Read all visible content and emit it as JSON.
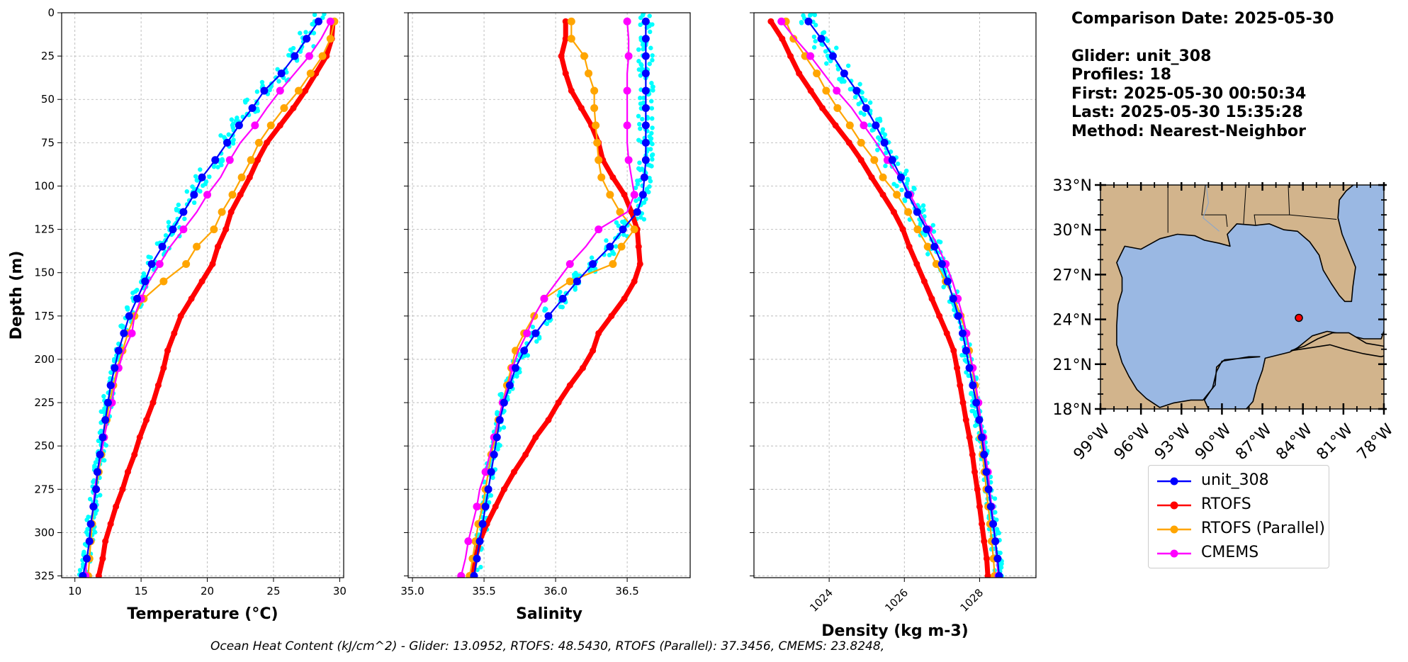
{
  "info": {
    "comparison_date": "Comparison Date: 2025-05-30",
    "glider": "Glider: unit_308",
    "profiles": "Profiles: 18",
    "first": "First: 2025-05-30 00:50:34",
    "last": "Last: 2025-05-30 15:35:28",
    "method": "Method: Nearest-Neighbor"
  },
  "ohc_text": "Ocean Heat Content (kJ/cm^2) - Glider: 13.0952,  RTOFS: 48.5430,  RTOFS (Parallel): 37.3456,  CMEMS: 23.8248,",
  "legend": [
    {
      "label": "unit_308",
      "color": "#0000ff"
    },
    {
      "label": "RTOFS",
      "color": "#ff0000"
    },
    {
      "label": "RTOFS (Parallel)",
      "color": "#ffa500"
    },
    {
      "label": "CMEMS",
      "color": "#ff00ff"
    }
  ],
  "colors": {
    "glider_raw": "#00ffff",
    "glider": "#0000ff",
    "rtofs": "#ff0000",
    "rtofs_parallel": "#ffa500",
    "cmems": "#ff00ff",
    "land": "#d2b48c",
    "ocean": "#9ab8e3"
  },
  "map": {
    "lat_ticks": [
      "33°N",
      "30°N",
      "27°N",
      "24°N",
      "21°N",
      "18°N"
    ],
    "lon_ticks": [
      "99°W",
      "96°W",
      "93°W",
      "90°W",
      "87°W",
      "84°W",
      "81°W",
      "78°W"
    ],
    "glider_position": {
      "lon": -84.3,
      "lat": 24.1
    }
  },
  "chart_data": [
    {
      "type": "line",
      "xlabel": "Temperature (°C)",
      "ylabel": "Depth (m)",
      "xlim": [
        9,
        30.3
      ],
      "ylim": [
        326,
        0
      ],
      "xticks": [
        10,
        15,
        20,
        25,
        30
      ],
      "yticks": [
        0,
        25,
        50,
        75,
        100,
        125,
        150,
        175,
        200,
        225,
        250,
        275,
        300,
        325
      ],
      "grid": true,
      "depth": [
        5,
        15,
        25,
        35,
        45,
        55,
        65,
        75,
        85,
        95,
        105,
        115,
        125,
        135,
        145,
        155,
        165,
        175,
        185,
        195,
        205,
        215,
        225,
        235,
        245,
        255,
        265,
        275,
        285,
        295,
        305,
        315,
        325
      ],
      "series": [
        {
          "name": "unit_308",
          "x": [
            28.4,
            27.5,
            26.6,
            25.6,
            24.3,
            23.4,
            22.4,
            21.5,
            20.6,
            19.6,
            19.0,
            18.2,
            17.4,
            16.6,
            15.8,
            15.3,
            14.7,
            14.1,
            13.7,
            13.3,
            13.0,
            12.7,
            12.5,
            12.3,
            12.1,
            11.9,
            11.7,
            11.6,
            11.4,
            11.2,
            11.1,
            10.9,
            10.6
          ]
        },
        {
          "name": "RTOFS",
          "x": [
            29.5,
            29.4,
            29.0,
            28.2,
            27.4,
            26.5,
            25.5,
            24.5,
            23.8,
            23.2,
            22.5,
            21.8,
            21.4,
            20.8,
            20.4,
            19.6,
            18.8,
            18.0,
            17.5,
            17.0,
            16.7,
            16.3,
            15.9,
            15.4,
            14.9,
            14.5,
            14.0,
            13.6,
            13.1,
            12.7,
            12.3,
            12.1,
            11.8
          ]
        },
        {
          "name": "RTOFS (Parallel)",
          "x": [
            29.6,
            29.3,
            28.7,
            27.8,
            26.9,
            25.8,
            24.8,
            23.9,
            23.3,
            22.6,
            21.9,
            21.1,
            20.5,
            19.2,
            18.4,
            16.7,
            15.2,
            14.5,
            14.0,
            13.6,
            13.2,
            12.9,
            12.6,
            12.4,
            12.2,
            12.0,
            11.8,
            11.6,
            11.4,
            11.3,
            11.2,
            11.1,
            11.0
          ]
        },
        {
          "name": "CMEMS",
          "x": [
            29.3,
            28.6,
            27.7,
            26.6,
            25.5,
            24.5,
            23.6,
            22.5,
            21.7,
            21.0,
            20.0,
            19.2,
            18.2,
            17.2,
            16.4,
            15.6,
            15.0,
            14.5,
            14.3,
            13.7,
            13.3,
            13.0,
            12.8,
            12.5,
            12.2,
            12.0,
            11.7,
            11.5,
            11.4,
            11.2,
            11.1,
            10.9,
            10.8
          ]
        }
      ]
    },
    {
      "type": "line",
      "xlabel": "Salinity",
      "ylabel": "",
      "xlim": [
        34.97,
        36.94
      ],
      "ylim": [
        326,
        0
      ],
      "xticks": [
        35.0,
        35.5,
        36.0,
        36.5
      ],
      "grid": true,
      "depth": [
        5,
        15,
        25,
        35,
        45,
        55,
        65,
        75,
        85,
        95,
        105,
        115,
        125,
        135,
        145,
        155,
        165,
        175,
        185,
        195,
        205,
        215,
        225,
        235,
        245,
        255,
        265,
        275,
        285,
        295,
        305,
        315,
        325
      ],
      "series": [
        {
          "name": "unit_308",
          "x": [
            36.63,
            36.63,
            36.63,
            36.63,
            36.63,
            36.63,
            36.63,
            36.63,
            36.63,
            36.62,
            36.61,
            36.57,
            36.47,
            36.38,
            36.26,
            36.15,
            36.05,
            35.95,
            35.86,
            35.78,
            35.72,
            35.68,
            35.64,
            35.61,
            35.59,
            35.57,
            35.55,
            35.53,
            35.51,
            35.49,
            35.47,
            35.45,
            35.43
          ]
        },
        {
          "name": "RTOFS",
          "x": [
            36.07,
            36.07,
            36.04,
            36.07,
            36.11,
            36.18,
            36.25,
            36.3,
            36.33,
            36.4,
            36.48,
            36.53,
            36.57,
            36.58,
            36.59,
            36.55,
            36.48,
            36.39,
            36.3,
            36.26,
            36.19,
            36.1,
            36.02,
            35.95,
            35.86,
            35.79,
            35.71,
            35.64,
            35.58,
            35.52,
            35.47,
            35.44,
            35.42
          ]
        },
        {
          "name": "RTOFS (Parallel)",
          "x": [
            36.11,
            36.11,
            36.2,
            36.23,
            36.27,
            36.27,
            36.28,
            36.29,
            36.3,
            36.32,
            36.38,
            36.45,
            36.55,
            36.46,
            36.4,
            36.1,
            35.92,
            35.85,
            35.78,
            35.72,
            35.69,
            35.66,
            35.63,
            35.6,
            35.58,
            35.55,
            35.53,
            35.51,
            35.49,
            35.46,
            35.44,
            35.42,
            35.4
          ]
        },
        {
          "name": "CMEMS",
          "x": [
            36.5,
            36.51,
            36.51,
            36.5,
            36.5,
            36.5,
            36.5,
            36.5,
            36.51,
            36.53,
            36.55,
            36.5,
            36.3,
            36.21,
            36.1,
            36.01,
            35.92,
            35.85,
            35.8,
            35.74,
            35.7,
            35.67,
            35.63,
            35.6,
            35.57,
            35.54,
            35.51,
            35.47,
            35.45,
            35.42,
            35.39,
            35.37,
            35.34
          ]
        }
      ]
    },
    {
      "type": "line",
      "xlabel": "Density (kg m-3)",
      "ylabel": "",
      "xlim": [
        1022.0,
        1029.5
      ],
      "ylim": [
        326,
        0
      ],
      "xticks": [
        1024,
        1026,
        1028
      ],
      "grid": true,
      "depth": [
        5,
        15,
        25,
        35,
        45,
        55,
        65,
        75,
        85,
        95,
        105,
        115,
        125,
        135,
        145,
        155,
        165,
        175,
        185,
        195,
        205,
        215,
        225,
        235,
        245,
        255,
        265,
        275,
        285,
        295,
        305,
        315,
        325
      ],
      "series": [
        {
          "name": "unit_308",
          "x": [
            1023.45,
            1023.79,
            1024.1,
            1024.4,
            1024.73,
            1024.98,
            1025.24,
            1025.47,
            1025.68,
            1025.91,
            1026.1,
            1026.34,
            1026.59,
            1026.8,
            1027.0,
            1027.15,
            1027.3,
            1027.43,
            1027.55,
            1027.64,
            1027.73,
            1027.82,
            1027.91,
            1027.99,
            1028.06,
            1028.12,
            1028.18,
            1028.24,
            1028.3,
            1028.36,
            1028.42,
            1028.48,
            1028.52
          ]
        },
        {
          "name": "RTOFS",
          "x": [
            1022.45,
            1022.75,
            1022.97,
            1023.2,
            1023.51,
            1023.82,
            1024.17,
            1024.53,
            1024.85,
            1025.13,
            1025.43,
            1025.72,
            1025.96,
            1026.13,
            1026.33,
            1026.53,
            1026.73,
            1026.93,
            1027.13,
            1027.31,
            1027.4,
            1027.48,
            1027.56,
            1027.64,
            1027.73,
            1027.81,
            1027.87,
            1027.94,
            1028.0,
            1028.06,
            1028.12,
            1028.19,
            1028.22
          ]
        },
        {
          "name": "RTOFS (Parallel)",
          "x": [
            1022.85,
            1023.05,
            1023.36,
            1023.67,
            1023.92,
            1024.22,
            1024.55,
            1024.85,
            1025.2,
            1025.43,
            1025.8,
            1026.1,
            1026.35,
            1026.62,
            1026.85,
            1027.1,
            1027.33,
            1027.5,
            1027.65,
            1027.72,
            1027.8,
            1027.88,
            1027.94,
            1027.99,
            1028.03,
            1028.08,
            1028.13,
            1028.18,
            1028.23,
            1028.28,
            1028.32,
            1028.37,
            1028.4
          ]
        },
        {
          "name": "CMEMS",
          "x": [
            1022.73,
            1023.1,
            1023.5,
            1023.85,
            1024.2,
            1024.6,
            1024.92,
            1025.25,
            1025.55,
            1025.88,
            1026.15,
            1026.4,
            1026.65,
            1026.9,
            1027.1,
            1027.28,
            1027.42,
            1027.55,
            1027.65,
            1027.73,
            1027.82,
            1027.9,
            1027.97,
            1028.03,
            1028.1,
            1028.16,
            1028.22,
            1028.27,
            1028.32,
            1028.37,
            1028.42,
            1028.46,
            1028.5
          ]
        }
      ]
    }
  ]
}
